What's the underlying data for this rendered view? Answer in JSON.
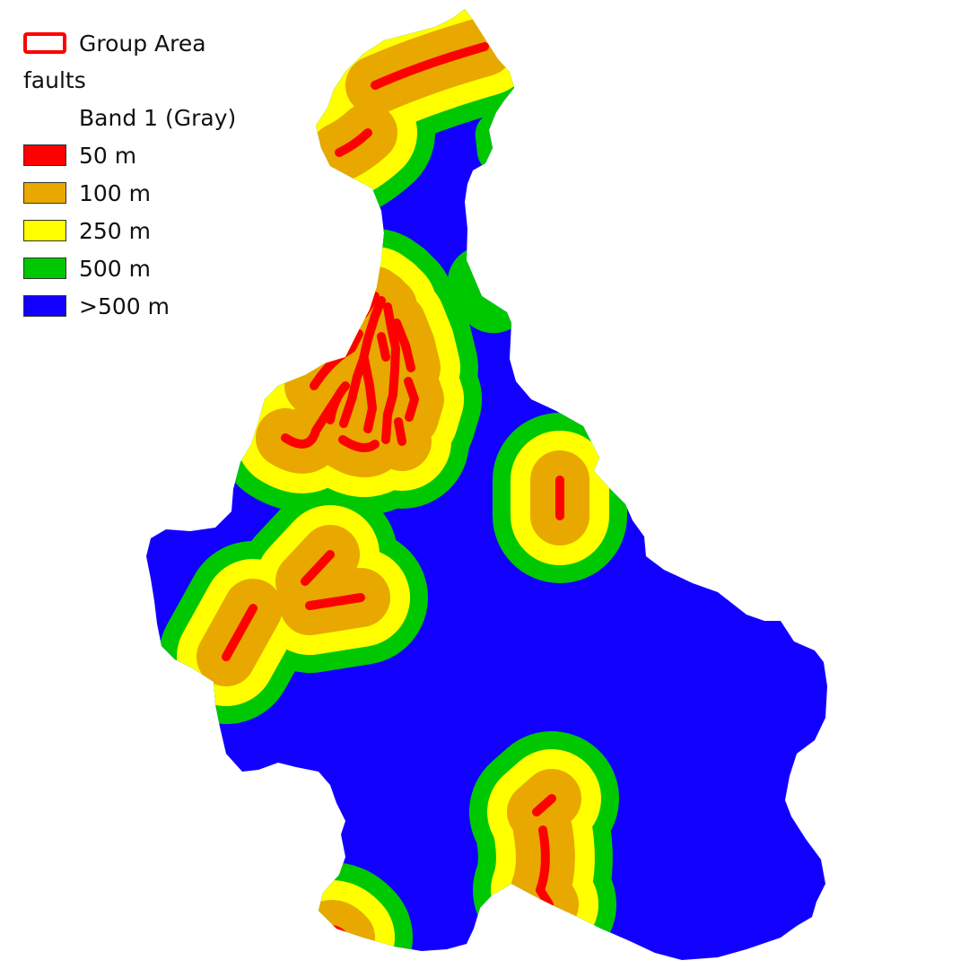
{
  "legend": {
    "group_area_label": "Group Area",
    "group_area_color": "#ff0000",
    "layer_name": "faults",
    "band_name": "Band 1 (Gray)",
    "classes": [
      {
        "label": "50 m",
        "color": "#ff0000"
      },
      {
        "label": "100 m",
        "color": "#e8a800"
      },
      {
        "label": "250 m",
        "color": "#ffff00"
      },
      {
        "label": "500 m",
        "color": "#00c800"
      },
      {
        "label": ">500 m",
        "color": "#1200ff"
      }
    ]
  },
  "map": {
    "background_color": "#1200ff",
    "buffer_colors": {
      "b500": "#00c800",
      "b250": "#ffff00",
      "b100": "#e8a800",
      "b50": "#ff0000"
    }
  }
}
